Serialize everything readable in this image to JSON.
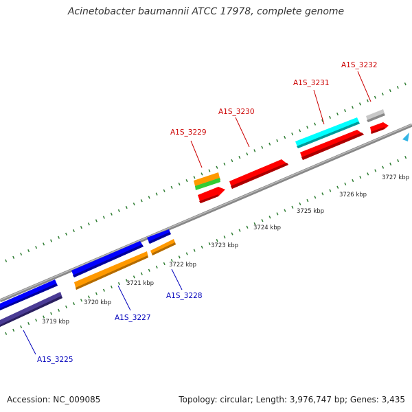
{
  "title": "Acinetobacter baumannii ATCC 17978, complete genome",
  "footer": {
    "accession": "Accession: NC_009085",
    "summary": "Topology: circular; Length: 3,976,747 bp; Genes: 3,435"
  },
  "colors": {
    "backbone": "#888888",
    "tick": "#2e7d32",
    "label_forward": "#cc0000",
    "label_reverse": "#0000bb"
  },
  "kbp_labels": [
    "3719 kbp",
    "3720 kbp",
    "3721 kbp",
    "3722 kbp",
    "3723 kbp",
    "3724 kbp",
    "3725 kbp",
    "3726 kbp",
    "3727 kbp"
  ],
  "genes": {
    "top": [
      "A1S_3229",
      "A1S_3230",
      "A1S_3231",
      "A1S_3232"
    ],
    "bottom": [
      "A1S_3225",
      "A1S_3227",
      "A1S_3228"
    ]
  },
  "feature_colors": {
    "red": "#ff0000",
    "orange": "#ff9900",
    "green": "#33cc33",
    "cyan": "#00ffff",
    "gray": "#c8c8c8",
    "blue": "#0000ff",
    "navy": "#4b3c96",
    "lightblue": "#33b5e5"
  }
}
